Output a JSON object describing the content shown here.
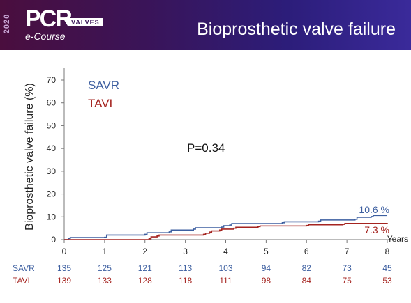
{
  "header": {
    "year": "2020",
    "brand": "PCR",
    "brand_badge": "VALVES",
    "course": "e-Course",
    "title": "Bioprosthetic valve failure"
  },
  "chart_data": {
    "type": "line",
    "ylabel": "Bioprosthetic valve failure (%)",
    "xlabel": "Years",
    "xlim": [
      0,
      8
    ],
    "ylim": [
      0,
      70
    ],
    "x_ticks": [
      0,
      1,
      2,
      3,
      4,
      5,
      6,
      7,
      8
    ],
    "y_ticks": [
      0,
      10,
      20,
      30,
      40,
      50,
      60,
      70
    ],
    "annotation": "P=0.34",
    "series": [
      {
        "name": "SAVR",
        "color": "#3d5fa0",
        "end_label": "10.6 %",
        "points": [
          [
            0,
            0
          ],
          [
            0.1,
            0.5
          ],
          [
            0.15,
            0.9
          ],
          [
            1.0,
            1.0
          ],
          [
            1.05,
            2.0
          ],
          [
            2.0,
            2.3
          ],
          [
            2.05,
            3.0
          ],
          [
            2.6,
            3.4
          ],
          [
            2.65,
            4.2
          ],
          [
            3.2,
            4.6
          ],
          [
            3.25,
            5.2
          ],
          [
            3.9,
            5.5
          ],
          [
            3.95,
            6.1
          ],
          [
            4.1,
            6.4
          ],
          [
            4.15,
            7.0
          ],
          [
            5.4,
            7.4
          ],
          [
            5.45,
            7.8
          ],
          [
            6.3,
            8.1
          ],
          [
            6.35,
            8.6
          ],
          [
            7.2,
            8.9
          ],
          [
            7.25,
            9.8
          ],
          [
            7.6,
            10.1
          ],
          [
            7.65,
            10.6
          ],
          [
            8.0,
            10.6
          ]
        ]
      },
      {
        "name": "TAVI",
        "color": "#a52420",
        "end_label": "7.3 %",
        "points": [
          [
            0,
            0
          ],
          [
            2.1,
            0.4
          ],
          [
            2.15,
            1.2
          ],
          [
            2.3,
            1.6
          ],
          [
            2.35,
            2.0
          ],
          [
            3.45,
            2.3
          ],
          [
            3.5,
            2.8
          ],
          [
            3.6,
            3.3
          ],
          [
            3.65,
            3.8
          ],
          [
            3.85,
            4.2
          ],
          [
            3.9,
            4.6
          ],
          [
            4.2,
            5.0
          ],
          [
            4.25,
            5.4
          ],
          [
            4.8,
            5.7
          ],
          [
            4.85,
            6.0
          ],
          [
            6.0,
            6.2
          ],
          [
            6.05,
            6.5
          ],
          [
            6.9,
            6.7
          ],
          [
            6.95,
            7.1
          ],
          [
            8.0,
            7.3
          ]
        ]
      }
    ],
    "at_risk": [
      {
        "name": "SAVR",
        "color": "#3d5fa0",
        "values": [
          135,
          125,
          121,
          113,
          103,
          94,
          82,
          73,
          45
        ]
      },
      {
        "name": "TAVI",
        "color": "#a52420",
        "values": [
          139,
          133,
          128,
          118,
          111,
          98,
          84,
          75,
          53
        ]
      }
    ]
  }
}
